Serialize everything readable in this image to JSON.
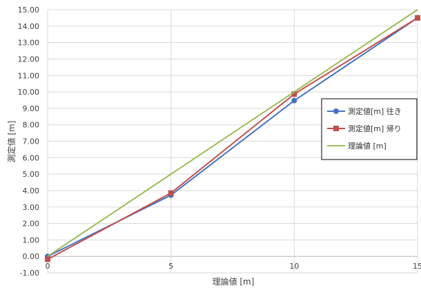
{
  "chart_data": {
    "type": "line",
    "xlabel": "理論値 [m]",
    "ylabel": "測定値 [m]",
    "xlim": [
      0,
      15
    ],
    "ylim": [
      -1,
      15
    ],
    "xticks": [
      "0",
      "5",
      "10",
      "15"
    ],
    "yticks": [
      "-1.00",
      "0.00",
      "1.00",
      "2.00",
      "3.00",
      "4.00",
      "5.00",
      "6.00",
      "7.00",
      "8.00",
      "9.00",
      "10.00",
      "11.00",
      "12.00",
      "13.00",
      "14.00",
      "15.00"
    ],
    "grid": true,
    "legend_position": "right",
    "series": [
      {
        "name": "測定値[m] 往き",
        "color": "#4472C4",
        "marker": "circle",
        "x": [
          0,
          5,
          10,
          15
        ],
        "y": [
          0.0,
          3.72,
          9.47,
          14.5
        ]
      },
      {
        "name": "測定値[m] 帰り",
        "color": "#C0504D",
        "marker": "square",
        "x": [
          0,
          5,
          10,
          15
        ],
        "y": [
          -0.18,
          3.85,
          9.87,
          14.5
        ]
      },
      {
        "name": "理論値 [m]",
        "color": "#9BBB59",
        "marker": "none",
        "x": [
          0,
          5,
          10,
          15
        ],
        "y": [
          0,
          5,
          10,
          15
        ]
      }
    ]
  }
}
